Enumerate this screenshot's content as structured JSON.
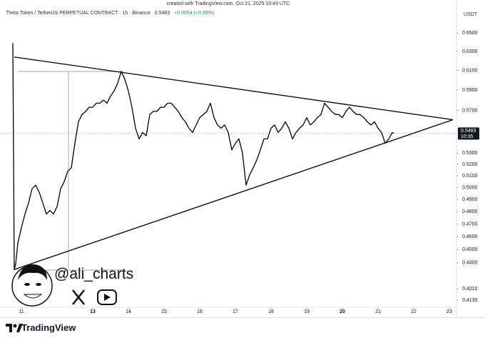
{
  "chart_data": {
    "type": "line",
    "header": "created with TradingView.com, Oct 21, 2025 10:49 UTC",
    "title": "Theta Token / TetherUS PERPETUAL CONTRACT · 1h · Binance",
    "last_price": 0.5483,
    "change": "+0.0054 (+0.99%)",
    "countdown": "10:35",
    "y_axis_label": "USDT",
    "watermark": "@ali_charts",
    "brand": "TradingView",
    "log_scale": true,
    "color": "#000000",
    "xlim": [
      10.4,
      23.2
    ],
    "xticks": [
      11,
      13,
      14,
      15,
      16,
      17,
      18,
      19,
      20,
      21,
      22,
      23
    ],
    "ylim": [
      0.408,
      0.671
    ],
    "yticks": [
      {
        "value": 0.65,
        "label": "0.6500"
      },
      {
        "value": 0.63,
        "label": "0.6300"
      },
      {
        "value": 0.61,
        "label": "0.6100"
      },
      {
        "value": 0.59,
        "label": "0.5900"
      },
      {
        "value": 0.57,
        "label": "0.5700"
      },
      {
        "value": 0.53,
        "label": "0.5300"
      },
      {
        "value": 0.52,
        "label": "0.5200"
      },
      {
        "value": 0.51,
        "label": "0.5100"
      },
      {
        "value": 0.5,
        "label": "0.5000"
      },
      {
        "value": 0.49,
        "label": "0.4900"
      },
      {
        "value": 0.48,
        "label": "0.4800"
      },
      {
        "value": 0.47,
        "label": "0.4700"
      },
      {
        "value": 0.46,
        "label": "0.4600"
      },
      {
        "value": 0.45,
        "label": "0.4500"
      },
      {
        "value": 0.44,
        "label": "0.4400"
      },
      {
        "value": 0.421,
        "label": "0.4210"
      },
      {
        "value": 0.413,
        "label": "0.4130"
      }
    ],
    "x": [
      10.76,
      10.8,
      10.84,
      10.9,
      11.0,
      11.1,
      11.2,
      11.3,
      11.4,
      11.5,
      11.6,
      11.7,
      11.8,
      11.9,
      12.0,
      12.1,
      12.2,
      12.3,
      12.4,
      12.5,
      12.6,
      12.7,
      12.8,
      12.9,
      13.0,
      13.1,
      13.2,
      13.3,
      13.4,
      13.5,
      13.6,
      13.7,
      13.8,
      13.9,
      14.0,
      14.1,
      14.2,
      14.3,
      14.4,
      14.5,
      14.6,
      14.7,
      14.8,
      14.9,
      15.0,
      15.1,
      15.2,
      15.3,
      15.4,
      15.5,
      15.6,
      15.7,
      15.8,
      15.9,
      16.0,
      16.1,
      16.2,
      16.3,
      16.4,
      16.5,
      16.6,
      16.7,
      16.8,
      16.9,
      17.0,
      17.1,
      17.2,
      17.3,
      17.4,
      17.5,
      17.6,
      17.7,
      17.8,
      17.9,
      18.0,
      18.1,
      18.2,
      18.3,
      18.4,
      18.5,
      18.6,
      18.7,
      18.8,
      18.9,
      19.0,
      19.1,
      19.2,
      19.3,
      19.4,
      19.5,
      19.6,
      19.7,
      19.8,
      19.9,
      20.0,
      20.1,
      20.2,
      20.3,
      20.4,
      20.5,
      20.6,
      20.7,
      20.8,
      20.9,
      21.0,
      21.1,
      21.2,
      21.3,
      21.4,
      21.44
    ],
    "values": [
      0.639,
      0.435,
      0.439,
      0.455,
      0.467,
      0.478,
      0.487,
      0.499,
      0.502,
      0.496,
      0.487,
      0.478,
      0.481,
      0.478,
      0.484,
      0.499,
      0.505,
      0.514,
      0.517,
      0.539,
      0.559,
      0.566,
      0.569,
      0.573,
      0.573,
      0.577,
      0.577,
      0.58,
      0.577,
      0.584,
      0.589,
      0.597,
      0.609,
      0.601,
      0.589,
      0.573,
      0.553,
      0.543,
      0.549,
      0.546,
      0.566,
      0.569,
      0.569,
      0.573,
      0.573,
      0.577,
      0.577,
      0.573,
      0.569,
      0.563,
      0.559,
      0.553,
      0.549,
      0.556,
      0.563,
      0.566,
      0.569,
      0.577,
      0.563,
      0.556,
      0.553,
      0.556,
      0.549,
      0.533,
      0.539,
      0.543,
      0.53,
      0.502,
      0.511,
      0.517,
      0.524,
      0.533,
      0.543,
      0.543,
      0.553,
      0.556,
      0.549,
      0.553,
      0.559,
      0.553,
      0.543,
      0.549,
      0.553,
      0.556,
      0.563,
      0.556,
      0.559,
      0.563,
      0.566,
      0.577,
      0.573,
      0.569,
      0.566,
      0.566,
      0.563,
      0.569,
      0.573,
      0.569,
      0.566,
      0.566,
      0.563,
      0.559,
      0.556,
      0.559,
      0.553,
      0.549,
      0.539,
      0.543,
      0.549,
      0.5483
    ],
    "trendlines": [
      {
        "x": [
          10.8,
          23.1
        ],
        "values": [
          0.624,
          0.561
        ]
      },
      {
        "x": [
          10.8,
          23.1
        ],
        "values": [
          0.435,
          0.561
        ]
      }
    ]
  }
}
